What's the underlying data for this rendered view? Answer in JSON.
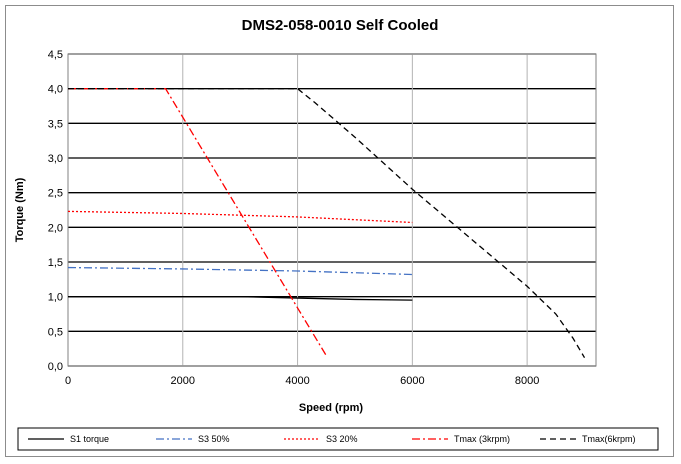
{
  "chart_data": {
    "type": "line",
    "title": "DMS2-058-0010 Self Cooled",
    "xlabel": "Speed (rpm)",
    "ylabel": "Torque (Nm)",
    "xlim": [
      0,
      9200
    ],
    "ylim": [
      0,
      4.5
    ],
    "x_ticks": [
      0,
      2000,
      4000,
      6000,
      8000
    ],
    "x_tick_labels": [
      "0",
      "2000",
      "4000",
      "6000",
      "8000"
    ],
    "y_ticks": [
      0,
      0.5,
      1.0,
      1.5,
      2.0,
      2.5,
      3.0,
      3.5,
      4.0,
      4.5
    ],
    "y_tick_labels": [
      "0,0",
      "0,5",
      "1,0",
      "1,5",
      "2,0",
      "2,5",
      "3,0",
      "3,5",
      "4,0",
      "4,5"
    ],
    "grid": true,
    "legend_position": "bottom",
    "series": [
      {
        "name": "S1 torque",
        "color": "#000000",
        "dash": "solid",
        "x": [
          0,
          3000,
          4000,
          5000,
          6000
        ],
        "y": [
          1.0,
          1.0,
          0.98,
          0.96,
          0.95
        ]
      },
      {
        "name": "S3 50%",
        "color": "#4472c4",
        "dash": "dashdot",
        "x": [
          0,
          2000,
          4000,
          6000
        ],
        "y": [
          1.42,
          1.4,
          1.37,
          1.32
        ]
      },
      {
        "name": "S3 20%",
        "color": "#ff0000",
        "dash": "dot",
        "x": [
          0,
          2000,
          4000,
          6000
        ],
        "y": [
          2.23,
          2.2,
          2.15,
          2.07
        ]
      },
      {
        "name": "Tmax (3krpm)",
        "color": "#ff0000",
        "dash": "dashdot",
        "x": [
          0,
          1700,
          4500
        ],
        "y": [
          4.0,
          4.0,
          0.15
        ]
      },
      {
        "name": "Tmax(6krpm)",
        "color": "#000000",
        "dash": "dash",
        "x": [
          0,
          4000,
          4300,
          5000,
          6000,
          7000,
          8000,
          8500,
          8800,
          9000
        ],
        "y": [
          4.0,
          4.0,
          3.8,
          3.3,
          2.55,
          1.85,
          1.15,
          0.75,
          0.4,
          0.12
        ]
      }
    ]
  }
}
